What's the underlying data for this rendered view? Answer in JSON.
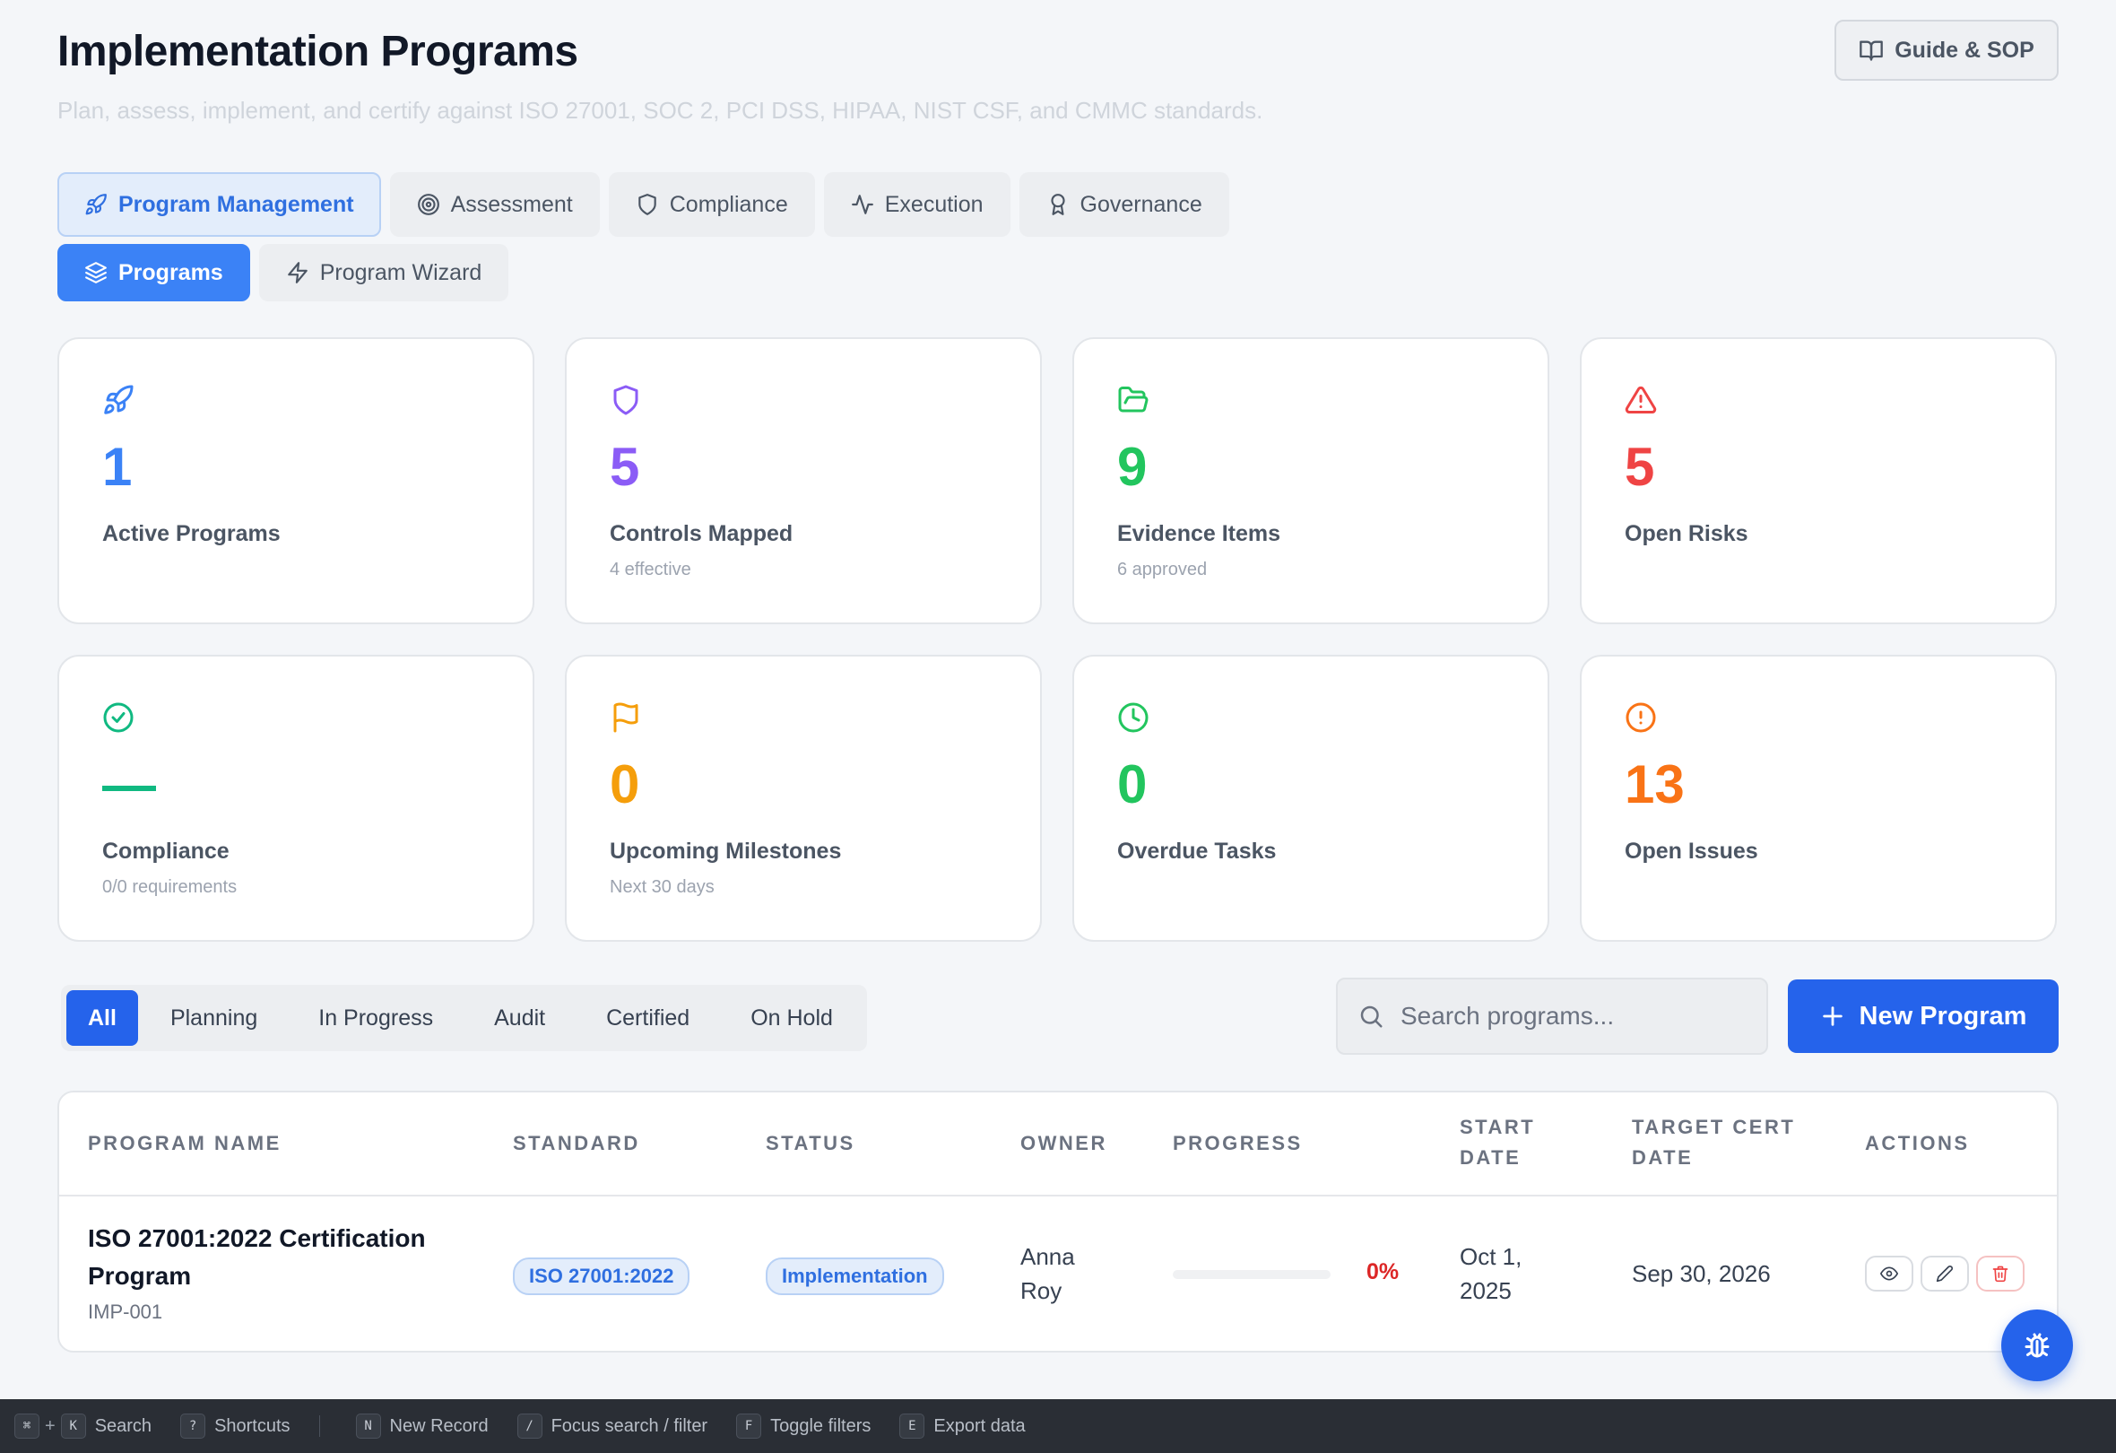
{
  "header": {
    "title": "Implementation Programs",
    "subtitle": "Plan, assess, implement, and certify against ISO 27001, SOC 2, PCI DSS, HIPAA, NIST CSF, and CMMC standards.",
    "guide_label": "Guide & SOP"
  },
  "tabs": [
    {
      "label": "Program Management",
      "icon": "rocket-icon",
      "active": true
    },
    {
      "label": "Assessment",
      "icon": "target-icon"
    },
    {
      "label": "Compliance",
      "icon": "shield-icon"
    },
    {
      "label": "Execution",
      "icon": "activity-icon"
    },
    {
      "label": "Governance",
      "icon": "award-icon"
    }
  ],
  "subtabs": [
    {
      "label": "Programs",
      "icon": "layers-icon",
      "active": true
    },
    {
      "label": "Program Wizard",
      "icon": "zap-icon"
    }
  ],
  "stats": [
    {
      "value": "1",
      "label": "Active Programs",
      "sub": "",
      "icon": "rocket-icon",
      "color": "#3b82f6"
    },
    {
      "value": "5",
      "label": "Controls Mapped",
      "sub": "4 effective",
      "icon": "shield-icon",
      "color": "#8b5cf6"
    },
    {
      "value": "9",
      "label": "Evidence Items",
      "sub": "6 approved",
      "icon": "folder-open-icon",
      "color": "#22c55e"
    },
    {
      "value": "5",
      "label": "Open Risks",
      "sub": "",
      "icon": "alert-triangle-icon",
      "color": "#ef4444"
    },
    {
      "value": "—",
      "label": "Compliance",
      "sub": "0/0 requirements",
      "icon": "check-circle-icon",
      "color": "#10b981"
    },
    {
      "value": "0",
      "label": "Upcoming Milestones",
      "sub": "Next 30 days",
      "icon": "flag-icon",
      "color": "#f59e0b"
    },
    {
      "value": "0",
      "label": "Overdue Tasks",
      "sub": "",
      "icon": "clock-icon",
      "color": "#22c55e"
    },
    {
      "value": "13",
      "label": "Open Issues",
      "sub": "",
      "icon": "alert-circle-icon",
      "color": "#f97316"
    }
  ],
  "filters": [
    "All",
    "Planning",
    "In Progress",
    "Audit",
    "Certified",
    "On Hold"
  ],
  "search": {
    "placeholder": "Search programs..."
  },
  "new_program_label": "New Program",
  "table": {
    "headers": {
      "name": "PROGRAM NAME",
      "standard": "STANDARD",
      "status": "STATUS",
      "owner": "OWNER",
      "progress": "PROGRESS",
      "start": "START DATE",
      "target": "TARGET CERT DATE",
      "actions": "ACTIONS"
    },
    "rows": [
      {
        "name": "ISO 27001:2022 Certification Program",
        "id": "IMP-001",
        "standard": "ISO 27001:2022",
        "status": "Implementation",
        "owner": "Anna Roy",
        "progress_pct": 0,
        "progress_label": "0%",
        "start_date": "Oct 1, 2025",
        "target_date": "Sep 30, 2026"
      }
    ]
  },
  "footer": {
    "shortcuts": [
      {
        "keys": [
          "⌘",
          "K"
        ],
        "label": "Search"
      },
      {
        "keys": [
          "?"
        ],
        "label": "Shortcuts"
      },
      {
        "keys": [
          "N"
        ],
        "label": "New Record"
      },
      {
        "keys": [
          "/"
        ],
        "label": "Focus search / filter"
      },
      {
        "keys": [
          "F"
        ],
        "label": "Toggle filters"
      },
      {
        "keys": [
          "E"
        ],
        "label": "Export data"
      }
    ]
  }
}
